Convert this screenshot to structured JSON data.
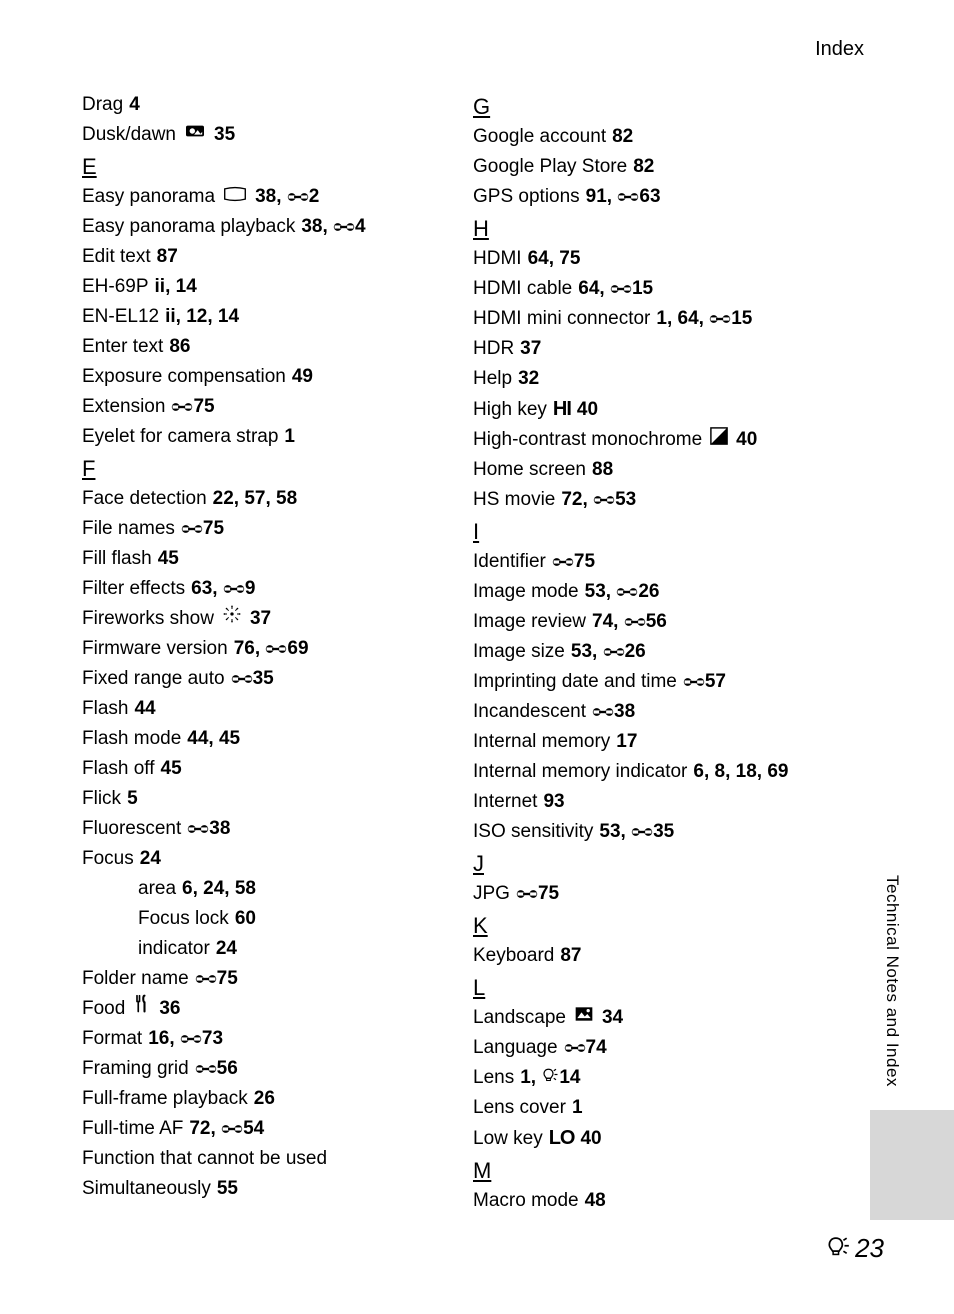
{
  "header": "Index",
  "sideLabel": "Technical Notes and Index",
  "pageNumber": "23",
  "columns": [
    {
      "items": [
        {
          "type": "entry",
          "term": "Drag",
          "refs": [
            {
              "t": "4"
            }
          ]
        },
        {
          "type": "entry",
          "term": "Dusk/dawn",
          "icon": "dusk",
          "refs": [
            {
              "t": "35"
            }
          ]
        },
        {
          "type": "letter",
          "letter": "E"
        },
        {
          "type": "entry",
          "term": "Easy panorama",
          "icon": "pano",
          "refs": [
            {
              "t": "38,"
            },
            {
              "i": "ref",
              "t": "2"
            }
          ]
        },
        {
          "type": "entry",
          "term": "Easy panorama playback",
          "refs": [
            {
              "t": "38,"
            },
            {
              "i": "ref",
              "t": "4"
            }
          ]
        },
        {
          "type": "entry",
          "term": "Edit text",
          "refs": [
            {
              "t": "87"
            }
          ]
        },
        {
          "type": "entry",
          "term": "EH-69P",
          "refs": [
            {
              "t": "ii,"
            },
            {
              "t": "14"
            }
          ]
        },
        {
          "type": "entry",
          "term": "EN-EL12",
          "refs": [
            {
              "t": "ii,"
            },
            {
              "t": "12,"
            },
            {
              "t": "14"
            }
          ]
        },
        {
          "type": "entry",
          "term": "Enter text",
          "refs": [
            {
              "t": "86"
            }
          ]
        },
        {
          "type": "entry",
          "term": "Exposure compensation",
          "refs": [
            {
              "t": "49"
            }
          ]
        },
        {
          "type": "entry",
          "term": "Extension",
          "refs": [
            {
              "i": "ref",
              "t": "75"
            }
          ]
        },
        {
          "type": "entry",
          "term": "Eyelet for camera strap",
          "refs": [
            {
              "t": "1"
            }
          ]
        },
        {
          "type": "letter",
          "letter": "F"
        },
        {
          "type": "entry",
          "term": "Face detection",
          "refs": [
            {
              "t": "22,"
            },
            {
              "t": "57,"
            },
            {
              "t": "58"
            }
          ]
        },
        {
          "type": "entry",
          "term": "File names",
          "refs": [
            {
              "i": "ref",
              "t": "75"
            }
          ]
        },
        {
          "type": "entry",
          "term": "Fill flash",
          "refs": [
            {
              "t": "45"
            }
          ]
        },
        {
          "type": "entry",
          "term": "Filter effects",
          "refs": [
            {
              "t": "63,"
            },
            {
              "i": "ref",
              "t": "9"
            }
          ]
        },
        {
          "type": "entry",
          "term": "Fireworks show",
          "icon": "fireworks",
          "refs": [
            {
              "t": "37"
            }
          ]
        },
        {
          "type": "entry",
          "term": "Firmware version",
          "refs": [
            {
              "t": "76,"
            },
            {
              "i": "ref",
              "t": "69"
            }
          ]
        },
        {
          "type": "entry",
          "term": "Fixed range auto",
          "refs": [
            {
              "i": "ref",
              "t": "35"
            }
          ]
        },
        {
          "type": "entry",
          "term": "Flash",
          "refs": [
            {
              "t": "44"
            }
          ]
        },
        {
          "type": "entry",
          "term": "Flash mode",
          "refs": [
            {
              "t": "44,"
            },
            {
              "t": "45"
            }
          ]
        },
        {
          "type": "entry",
          "term": "Flash off",
          "refs": [
            {
              "t": "45"
            }
          ]
        },
        {
          "type": "entry",
          "term": "Flick",
          "refs": [
            {
              "t": "5"
            }
          ]
        },
        {
          "type": "entry",
          "term": "Fluorescent",
          "refs": [
            {
              "i": "ref",
              "t": "38"
            }
          ]
        },
        {
          "type": "entry",
          "term": "Focus",
          "refs": [
            {
              "t": "24"
            }
          ]
        },
        {
          "type": "entry",
          "sub": true,
          "term": "area",
          "refs": [
            {
              "t": "6,"
            },
            {
              "t": "24,"
            },
            {
              "t": "58"
            }
          ]
        },
        {
          "type": "entry",
          "sub": true,
          "term": "Focus lock",
          "refs": [
            {
              "t": "60"
            }
          ]
        },
        {
          "type": "entry",
          "sub": true,
          "term": "indicator",
          "refs": [
            {
              "t": "24"
            }
          ]
        },
        {
          "type": "entry",
          "term": "Folder name",
          "refs": [
            {
              "i": "ref",
              "t": "75"
            }
          ]
        },
        {
          "type": "entry",
          "term": "Food",
          "icon": "food",
          "refs": [
            {
              "t": "36"
            }
          ]
        },
        {
          "type": "entry",
          "term": "Format",
          "refs": [
            {
              "t": "16,"
            },
            {
              "i": "ref",
              "t": "73"
            }
          ]
        },
        {
          "type": "entry",
          "term": "Framing grid",
          "refs": [
            {
              "i": "ref",
              "t": "56"
            }
          ]
        },
        {
          "type": "entry",
          "term": "Full-frame playback",
          "refs": [
            {
              "t": "26"
            }
          ]
        },
        {
          "type": "entry",
          "term": "Full-time AF",
          "refs": [
            {
              "t": "72,"
            },
            {
              "i": "ref",
              "t": "54"
            }
          ]
        },
        {
          "type": "entry",
          "term": "Function that cannot be used",
          "refs": []
        },
        {
          "type": "entry",
          "term": "Simultaneously",
          "refs": [
            {
              "t": "55"
            }
          ]
        }
      ]
    },
    {
      "items": [
        {
          "type": "letter",
          "letter": "G"
        },
        {
          "type": "entry",
          "term": "Google account",
          "refs": [
            {
              "t": "82"
            }
          ]
        },
        {
          "type": "entry",
          "term": "Google Play Store",
          "refs": [
            {
              "t": "82"
            }
          ]
        },
        {
          "type": "entry",
          "term": "GPS options",
          "refs": [
            {
              "t": "91,"
            },
            {
              "i": "ref",
              "t": "63"
            }
          ]
        },
        {
          "type": "letter",
          "letter": "H"
        },
        {
          "type": "entry",
          "term": "HDMI",
          "refs": [
            {
              "t": "64,"
            },
            {
              "t": "75"
            }
          ]
        },
        {
          "type": "entry",
          "term": "HDMI cable",
          "refs": [
            {
              "t": "64,"
            },
            {
              "i": "ref",
              "t": "15"
            }
          ]
        },
        {
          "type": "entry",
          "term": "HDMI mini connector",
          "refs": [
            {
              "t": "1,"
            },
            {
              "t": "64,"
            },
            {
              "i": "ref",
              "t": "15"
            }
          ]
        },
        {
          "type": "entry",
          "term": "HDR",
          "refs": [
            {
              "t": "37"
            }
          ]
        },
        {
          "type": "entry",
          "term": "Help",
          "refs": [
            {
              "t": "32"
            }
          ]
        },
        {
          "type": "entry",
          "term": "High key",
          "glyph": "HI",
          "refs": [
            {
              "t": "40"
            }
          ]
        },
        {
          "type": "entry",
          "term": "High-contrast monochrome",
          "icon": "mono",
          "refs": [
            {
              "t": "40"
            }
          ]
        },
        {
          "type": "entry",
          "term": "Home screen",
          "refs": [
            {
              "t": "88"
            }
          ]
        },
        {
          "type": "entry",
          "term": "HS movie",
          "refs": [
            {
              "t": "72,"
            },
            {
              "i": "ref",
              "t": "53"
            }
          ]
        },
        {
          "type": "letter",
          "letter": "I"
        },
        {
          "type": "entry",
          "term": "Identifier",
          "refs": [
            {
              "i": "ref",
              "t": "75"
            }
          ]
        },
        {
          "type": "entry",
          "term": "Image mode",
          "refs": [
            {
              "t": "53,"
            },
            {
              "i": "ref",
              "t": "26"
            }
          ]
        },
        {
          "type": "entry",
          "term": "Image review",
          "refs": [
            {
              "t": "74,"
            },
            {
              "i": "ref",
              "t": "56"
            }
          ]
        },
        {
          "type": "entry",
          "term": "Image size",
          "refs": [
            {
              "t": "53,"
            },
            {
              "i": "ref",
              "t": "26"
            }
          ]
        },
        {
          "type": "entry",
          "term": "Imprinting date and time",
          "refs": [
            {
              "i": "ref",
              "t": "57"
            }
          ]
        },
        {
          "type": "entry",
          "term": "Incandescent",
          "refs": [
            {
              "i": "ref",
              "t": "38"
            }
          ]
        },
        {
          "type": "entry",
          "term": "Internal memory",
          "refs": [
            {
              "t": "17"
            }
          ]
        },
        {
          "type": "entry",
          "term": "Internal memory indicator",
          "refs": [
            {
              "t": "6,"
            },
            {
              "t": "8,"
            },
            {
              "t": "18,"
            },
            {
              "t": "69"
            }
          ]
        },
        {
          "type": "entry",
          "term": "Internet",
          "refs": [
            {
              "t": "93"
            }
          ]
        },
        {
          "type": "entry",
          "term": "ISO sensitivity",
          "refs": [
            {
              "t": "53,"
            },
            {
              "i": "ref",
              "t": "35"
            }
          ]
        },
        {
          "type": "letter",
          "letter": "J"
        },
        {
          "type": "entry",
          "term": "JPG",
          "refs": [
            {
              "i": "ref",
              "t": "75"
            }
          ]
        },
        {
          "type": "letter",
          "letter": "K"
        },
        {
          "type": "entry",
          "term": "Keyboard",
          "refs": [
            {
              "t": "87"
            }
          ]
        },
        {
          "type": "letter",
          "letter": "L"
        },
        {
          "type": "entry",
          "term": "Landscape",
          "icon": "landscape",
          "refs": [
            {
              "t": "34"
            }
          ]
        },
        {
          "type": "entry",
          "term": "Language",
          "refs": [
            {
              "i": "ref",
              "t": "74"
            }
          ]
        },
        {
          "type": "entry",
          "term": "Lens",
          "refs": [
            {
              "t": "1,"
            },
            {
              "i": "spec",
              "t": "14"
            }
          ]
        },
        {
          "type": "entry",
          "term": "Lens cover",
          "refs": [
            {
              "t": "1"
            }
          ]
        },
        {
          "type": "entry",
          "term": "Low key",
          "glyph": "LO",
          "refs": [
            {
              "t": "40"
            }
          ]
        },
        {
          "type": "letter",
          "letter": "M"
        },
        {
          "type": "entry",
          "term": "Macro mode",
          "refs": [
            {
              "t": "48"
            }
          ]
        }
      ]
    }
  ]
}
